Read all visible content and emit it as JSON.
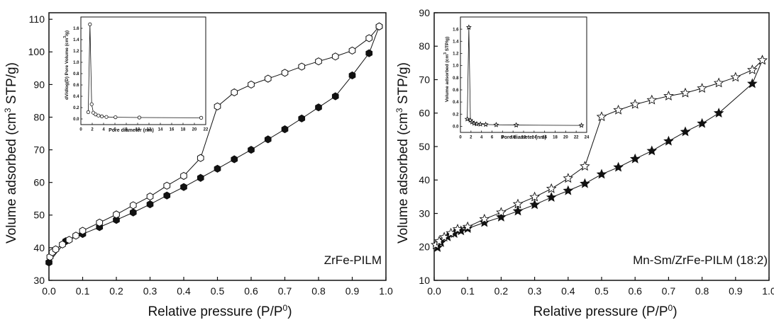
{
  "chart_data": [
    {
      "type": "scatter",
      "panel": "left",
      "annotation": "ZrFe-PILM",
      "xlabel": "Relative pressure (P/P",
      "xlabel_sup": "0",
      "xlabel_end": ")",
      "ylabel_pre": "Volume adsorbed (cm",
      "ylabel_sup": "3",
      "ylabel_post": " STP/g)",
      "xlim": [
        0.0,
        1.0
      ],
      "ylim": [
        30,
        112
      ],
      "xticks": [
        0.0,
        0.1,
        0.2,
        0.3,
        0.4,
        0.5,
        0.6,
        0.7,
        0.8,
        0.9,
        1.0
      ],
      "yticks": [
        30,
        40,
        50,
        60,
        70,
        80,
        90,
        100,
        110
      ],
      "xtick_labels": [
        "0.0",
        "0.1",
        "0.2",
        "0.3",
        "0.4",
        "0.5",
        "0.6",
        "0.7",
        "0.8",
        "0.9",
        "1.0"
      ],
      "ytick_labels": [
        "30",
        "40",
        "50",
        "60",
        "70",
        "80",
        "90",
        "100",
        "110"
      ],
      "marker": "hexagon",
      "series": [
        {
          "role": "adsorption",
          "filled": true,
          "x": [
            0.0,
            0.05,
            0.1,
            0.15,
            0.2,
            0.25,
            0.3,
            0.35,
            0.4,
            0.45,
            0.5,
            0.55,
            0.6,
            0.65,
            0.7,
            0.75,
            0.8,
            0.85,
            0.9,
            0.95,
            0.98
          ],
          "y": [
            35.5,
            42.0,
            44.2,
            46.3,
            48.5,
            50.8,
            53.3,
            56.0,
            58.6,
            61.4,
            64.2,
            67.1,
            70.0,
            73.2,
            76.3,
            79.6,
            83.0,
            86.4,
            92.8,
            99.6,
            107.8
          ]
        },
        {
          "role": "desorption",
          "filled": false,
          "x": [
            0.003,
            0.01,
            0.02,
            0.04,
            0.06,
            0.08,
            0.1,
            0.15,
            0.2,
            0.25,
            0.3,
            0.35,
            0.4,
            0.45,
            0.5,
            0.55,
            0.6,
            0.65,
            0.7,
            0.75,
            0.8,
            0.85,
            0.9,
            0.95,
            0.98
          ],
          "y": [
            37.2,
            38.6,
            39.5,
            41.0,
            42.4,
            43.7,
            45.2,
            47.7,
            50.2,
            53.0,
            55.7,
            59.0,
            62.0,
            67.5,
            83.3,
            87.6,
            90.0,
            91.8,
            93.6,
            95.5,
            97.1,
            98.6,
            100.4,
            104.2,
            107.8
          ]
        }
      ],
      "inset": {
        "type": "line",
        "xlabel": "Pore diameter (nm)",
        "ylabel_pre": "dV/dlog(D) Pore Volume (cm",
        "ylabel_sup": "3",
        "ylabel_post": "/g)",
        "xlim": [
          0,
          22
        ],
        "ylim": [
          -0.1,
          1.8
        ],
        "xticks": [
          0,
          2,
          4,
          6,
          8,
          10,
          12,
          14,
          16,
          18,
          20,
          22
        ],
        "yticks": [
          0.0,
          0.2,
          0.4,
          0.6,
          0.8,
          1.0,
          1.2,
          1.4,
          1.6
        ],
        "xtick_labels": [
          "0",
          "2",
          "4",
          "6",
          "8",
          "10",
          "12",
          "14",
          "16",
          "18",
          "20",
          "22"
        ],
        "ytick_labels": [
          "0.0",
          "0.2",
          "0.4",
          "0.6",
          "0.8",
          "1.0",
          "1.2",
          "1.4",
          "1.6"
        ],
        "marker": "circle-open",
        "x": [
          1.3,
          1.6,
          1.9,
          2.2,
          2.6,
          3.1,
          3.7,
          4.5,
          6.1,
          10.3,
          21.2
        ],
        "y": [
          0.12,
          1.67,
          0.26,
          0.11,
          0.08,
          0.06,
          0.045,
          0.035,
          0.03,
          0.025,
          0.02
        ]
      }
    },
    {
      "type": "scatter",
      "panel": "right",
      "annotation": "Mn-Sm/ZrFe-PILM (18:2)",
      "xlabel": "Relative pressure (P/P",
      "xlabel_sup": "0",
      "xlabel_end": ")",
      "ylabel_pre": "Volume adsorbed (cm",
      "ylabel_sup": "3",
      "ylabel_post": " STP/g)",
      "xlim": [
        0.0,
        1.0
      ],
      "ylim": [
        10,
        90
      ],
      "xticks": [
        0.0,
        0.1,
        0.2,
        0.3,
        0.4,
        0.5,
        0.6,
        0.7,
        0.8,
        0.9,
        1.0
      ],
      "yticks": [
        10,
        20,
        30,
        40,
        50,
        60,
        70,
        80,
        90
      ],
      "xtick_labels": [
        "0.0",
        "0.1",
        "0.2",
        "0.3",
        "0.4",
        "0.5",
        "0.6",
        "0.7",
        "0.8",
        "0.9",
        "1.0"
      ],
      "ytick_labels": [
        "10",
        "20",
        "30",
        "40",
        "50",
        "60",
        "70",
        "80",
        "90"
      ],
      "marker": "star",
      "series": [
        {
          "role": "adsorption",
          "filled": true,
          "x": [
            0.01,
            0.02,
            0.04,
            0.06,
            0.08,
            0.1,
            0.15,
            0.2,
            0.25,
            0.3,
            0.35,
            0.4,
            0.45,
            0.5,
            0.55,
            0.6,
            0.65,
            0.7,
            0.75,
            0.8,
            0.85,
            0.95,
            0.98
          ],
          "y": [
            19.8,
            21.3,
            23.0,
            24.0,
            24.8,
            25.5,
            27.3,
            28.9,
            30.7,
            32.6,
            34.8,
            36.8,
            38.9,
            41.7,
            43.8,
            46.3,
            48.7,
            51.6,
            54.4,
            56.9,
            60.0,
            68.8,
            75.8
          ]
        },
        {
          "role": "desorption",
          "filled": false,
          "x": [
            0.005,
            0.015,
            0.03,
            0.05,
            0.07,
            0.1,
            0.15,
            0.2,
            0.25,
            0.3,
            0.35,
            0.4,
            0.45,
            0.5,
            0.55,
            0.6,
            0.65,
            0.7,
            0.75,
            0.8,
            0.85,
            0.9,
            0.95,
            0.98
          ],
          "y": [
            20.6,
            21.7,
            22.9,
            24.1,
            25.3,
            26.0,
            28.3,
            30.3,
            32.8,
            34.9,
            37.4,
            40.5,
            44.1,
            58.9,
            60.9,
            62.6,
            63.9,
            65.1,
            66.0,
            67.4,
            69.0,
            70.7,
            72.9,
            75.8
          ]
        }
      ],
      "inset": {
        "type": "line",
        "xlabel": "Pore diameter (nm)",
        "ylabel_pre": "Volume adsorbed (cm",
        "ylabel_sup": "3",
        "ylabel_post": " STP/g)",
        "xlim": [
          0,
          24
        ],
        "ylim": [
          -0.1,
          1.8
        ],
        "xticks": [
          0,
          2,
          4,
          6,
          8,
          10,
          12,
          14,
          16,
          18,
          20,
          22,
          24
        ],
        "yticks": [
          0.0,
          0.2,
          0.4,
          0.6,
          0.8,
          1.0,
          1.2,
          1.4,
          1.6
        ],
        "xtick_labels": [
          "0",
          "2",
          "4",
          "6",
          "8",
          "10",
          "12",
          "14",
          "16",
          "18",
          "20",
          "22",
          "24"
        ],
        "ytick_labels": [
          "0.0",
          "0.2",
          "0.4",
          "0.6",
          "0.8",
          "1.0",
          "1.2",
          "1.4",
          "1.6"
        ],
        "marker": "star-open",
        "x": [
          1.3,
          1.6,
          1.9,
          2.2,
          2.6,
          3.1,
          3.8,
          4.8,
          6.8,
          10.6,
          23.0
        ],
        "y": [
          0.12,
          1.63,
          0.1,
          0.07,
          0.05,
          0.04,
          0.035,
          0.03,
          0.025,
          0.02,
          0.015
        ]
      }
    }
  ]
}
